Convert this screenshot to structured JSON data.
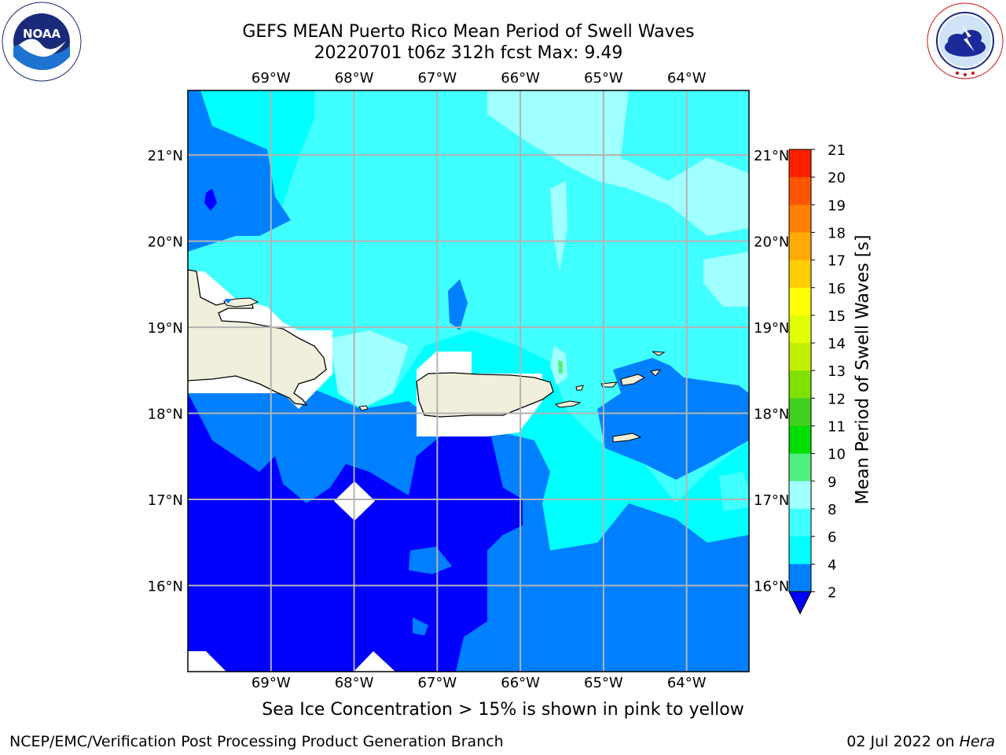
{
  "title": {
    "line1": "GEFS MEAN Puerto Rico Mean Period of Swell Waves",
    "line2": "20220701 t06z 312h fcst   Max: 9.49"
  },
  "logos": {
    "left": {
      "name": "noaa-logo",
      "text": "NOAA",
      "ring_text": "NATIONAL OCEANIC AND ATMOSPHERIC ADMINISTRATION · U.S. DEPARTMENT OF COMMERCE"
    },
    "right": {
      "name": "nws-logo",
      "ring_text": "NATIONAL WEATHER SERVICE"
    }
  },
  "map": {
    "lon_labels": [
      "69°W",
      "68°W",
      "67°W",
      "66°W",
      "65°W",
      "64°W"
    ],
    "lat_labels": [
      "21°N",
      "20°N",
      "19°N",
      "18°N",
      "17°N",
      "16°N"
    ],
    "lon_values": [
      -69,
      -68,
      -67,
      -66,
      -65,
      -64
    ],
    "lat_values": [
      21,
      20,
      19,
      18,
      17,
      16
    ],
    "lon_range": [
      -70,
      -63.25
    ],
    "lat_range": [
      15.0,
      21.75
    ],
    "grid": true,
    "colors": {
      "land": "#efefdc",
      "missing": "#ffffff",
      "coast": "#000000",
      "grid": "#b3b3b3"
    }
  },
  "colorbar": {
    "label": "Mean Period of Swell Waves [s]",
    "ticks": [
      "2",
      "4",
      "6",
      "8",
      "9",
      "10",
      "11",
      "12",
      "13",
      "14",
      "15",
      "16",
      "17",
      "18",
      "19",
      "20",
      "21"
    ],
    "colors": [
      "#0000ff",
      "#0080ff",
      "#00ffff",
      "#40ffff",
      "#a0ffff",
      "#50f080",
      "#00dd00",
      "#40d020",
      "#80e000",
      "#c0f000",
      "#e0ff00",
      "#ffff00",
      "#ffcc00",
      "#ffaa00",
      "#ff8000",
      "#ff5500",
      "#ff2000",
      "#ff0000"
    ],
    "extend_min_color": "#0000ff"
  },
  "chart_data": {
    "type": "heatmap",
    "title": "GEFS MEAN Puerto Rico Mean Period of Swell Waves",
    "subtitle": "20220701 t06z 312h fcst   Max: 9.49",
    "colorbar_label": "Mean Period of Swell Waves [s]",
    "levels": [
      2,
      4,
      6,
      8,
      9,
      10,
      11,
      12,
      13,
      14,
      15,
      16,
      17,
      18,
      19,
      20,
      21
    ],
    "max": 9.49,
    "region": "Puerto Rico"
  },
  "caption": "Sea Ice Concentration > 15% is shown in pink to yellow",
  "footer": {
    "left": "NCEP/EMC/Verification Post Processing Product Generation Branch",
    "right_prefix": "02 Jul 2022 on ",
    "right_host": "Hera"
  }
}
